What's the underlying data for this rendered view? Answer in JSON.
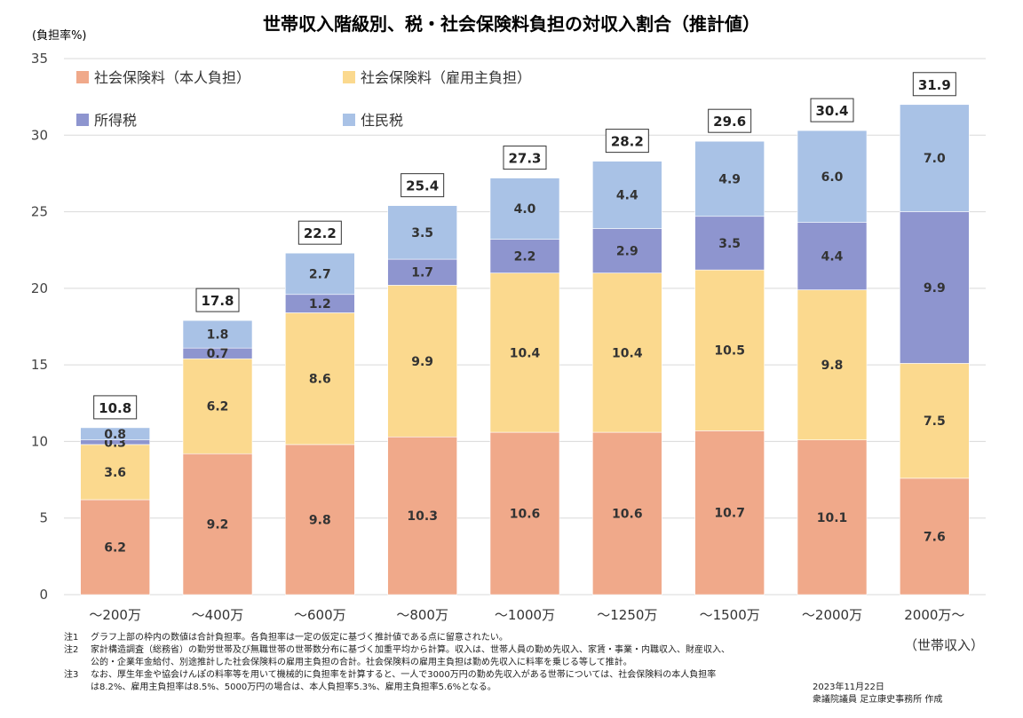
{
  "chart_data": {
    "type": "bar",
    "stacked": true,
    "title": "世帯収入階級別、税・社会保険料負担の対収入割合（推計値）",
    "ylabel": "(負担率%)",
    "xunit": "（世帯収入）",
    "ylim": [
      0,
      35
    ],
    "yticks": [
      0,
      5,
      10,
      15,
      20,
      25,
      30,
      35
    ],
    "grid": true,
    "legend_position": "top-left",
    "categories": [
      "～200万",
      "～400万",
      "～600万",
      "～800万",
      "～1000万",
      "～1250万",
      "～1500万",
      "～2000万",
      "2000万～"
    ],
    "series": [
      {
        "name": "社会保険料（本人負担）",
        "color": "#f0a98a",
        "values": [
          6.2,
          9.2,
          9.8,
          10.3,
          10.6,
          10.6,
          10.7,
          10.1,
          7.6
        ]
      },
      {
        "name": "社会保険料（雇用主負担）",
        "color": "#fbd98e",
        "values": [
          3.6,
          6.2,
          8.6,
          9.9,
          10.4,
          10.4,
          10.5,
          9.8,
          7.5
        ]
      },
      {
        "name": "所得税",
        "color": "#8e95cf",
        "values": [
          0.3,
          0.7,
          1.2,
          1.7,
          2.2,
          2.9,
          3.5,
          4.4,
          9.9
        ]
      },
      {
        "name": "住民税",
        "color": "#a9c2e6",
        "values": [
          0.8,
          1.8,
          2.7,
          3.5,
          4.0,
          4.4,
          4.9,
          6.0,
          7.0
        ]
      }
    ],
    "totals": [
      "10.8",
      "17.8",
      "22.2",
      "25.4",
      "27.3",
      "28.2",
      "29.6",
      "30.4",
      "31.9"
    ]
  },
  "notes": [
    {
      "tag": "注1",
      "text": "グラフ上部の枠内の数値は合計負担率。各負担率は一定の仮定に基づく推計値である点に留意されたい。"
    },
    {
      "tag": "注2",
      "text": "家計構造調査（総務省）の勤労世帯及び無職世帯の世帯数分布に基づく加重平均から計算。収入は、世帯人員の勤め先収入、家賃・事業・内職収入、財産収入、",
      "cont": "公的・企業年金給付、別途推計した社会保険料の雇用主負担の合計。社会保険料の雇用主負担は勤め先収入に料率を乗じる等して推計。"
    },
    {
      "tag": "注3",
      "text": "なお、厚生年金や協会けんぽの料率等を用いて機械的に負担率を計算すると、一人で3000万円の勤め先収入がある世帯については、社会保険料の本人負担率",
      "cont": "は8.2%、雇用主負担率は8.5%、5000万円の場合は、本人負担率5.3%、雇用主負担率5.6%となる。"
    }
  ],
  "credit": {
    "date": "2023年11月22日",
    "author": "衆議院議員 足立康史事務所 作成"
  }
}
